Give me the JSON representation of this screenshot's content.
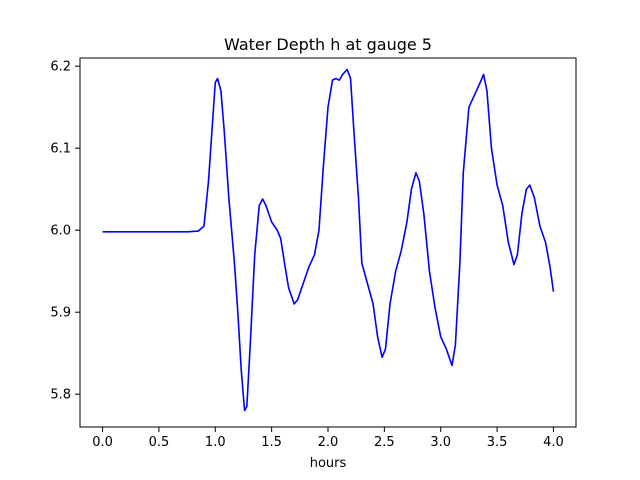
{
  "chart_data": {
    "type": "line",
    "title": "Water Depth h at gauge 5",
    "xlabel": "hours",
    "ylabel": "",
    "xlim": [
      -0.2,
      4.2
    ],
    "ylim": [
      5.76,
      6.21
    ],
    "xticks": [
      0.0,
      0.5,
      1.0,
      1.5,
      2.0,
      2.5,
      3.0,
      3.5,
      4.0
    ],
    "xtick_labels": [
      "0.0",
      "0.5",
      "1.0",
      "1.5",
      "2.0",
      "2.5",
      "3.0",
      "3.5",
      "4.0"
    ],
    "yticks": [
      5.8,
      5.9,
      6.0,
      6.1,
      6.2
    ],
    "ytick_labels": [
      "5.8",
      "5.9",
      "6.0",
      "6.1",
      "6.2"
    ],
    "grid": false,
    "series": [
      {
        "color": "#0000ff",
        "points": [
          [
            0.0,
            5.998
          ],
          [
            0.3,
            5.998
          ],
          [
            0.5,
            5.998
          ],
          [
            0.75,
            5.998
          ],
          [
            0.85,
            5.999
          ],
          [
            0.9,
            6.005
          ],
          [
            0.94,
            6.06
          ],
          [
            0.97,
            6.12
          ],
          [
            1.0,
            6.18
          ],
          [
            1.02,
            6.185
          ],
          [
            1.05,
            6.17
          ],
          [
            1.08,
            6.12
          ],
          [
            1.12,
            6.04
          ],
          [
            1.17,
            5.96
          ],
          [
            1.2,
            5.9
          ],
          [
            1.23,
            5.83
          ],
          [
            1.26,
            5.78
          ],
          [
            1.28,
            5.785
          ],
          [
            1.31,
            5.86
          ],
          [
            1.35,
            5.97
          ],
          [
            1.39,
            6.03
          ],
          [
            1.42,
            6.038
          ],
          [
            1.45,
            6.03
          ],
          [
            1.5,
            6.01
          ],
          [
            1.55,
            6.0
          ],
          [
            1.58,
            5.99
          ],
          [
            1.62,
            5.955
          ],
          [
            1.65,
            5.93
          ],
          [
            1.7,
            5.91
          ],
          [
            1.73,
            5.915
          ],
          [
            1.78,
            5.935
          ],
          [
            1.83,
            5.955
          ],
          [
            1.88,
            5.97
          ],
          [
            1.92,
            6.0
          ],
          [
            1.96,
            6.08
          ],
          [
            2.0,
            6.15
          ],
          [
            2.04,
            6.183
          ],
          [
            2.07,
            6.185
          ],
          [
            2.1,
            6.183
          ],
          [
            2.13,
            6.19
          ],
          [
            2.17,
            6.196
          ],
          [
            2.2,
            6.185
          ],
          [
            2.23,
            6.12
          ],
          [
            2.27,
            6.04
          ],
          [
            2.3,
            5.96
          ],
          [
            2.35,
            5.935
          ],
          [
            2.4,
            5.91
          ],
          [
            2.44,
            5.87
          ],
          [
            2.48,
            5.845
          ],
          [
            2.51,
            5.855
          ],
          [
            2.55,
            5.91
          ],
          [
            2.6,
            5.95
          ],
          [
            2.65,
            5.975
          ],
          [
            2.7,
            6.01
          ],
          [
            2.74,
            6.05
          ],
          [
            2.78,
            6.07
          ],
          [
            2.81,
            6.06
          ],
          [
            2.85,
            6.02
          ],
          [
            2.9,
            5.95
          ],
          [
            2.95,
            5.905
          ],
          [
            3.0,
            5.87
          ],
          [
            3.05,
            5.855
          ],
          [
            3.1,
            5.835
          ],
          [
            3.13,
            5.86
          ],
          [
            3.17,
            5.96
          ],
          [
            3.2,
            6.07
          ],
          [
            3.25,
            6.15
          ],
          [
            3.3,
            6.165
          ],
          [
            3.35,
            6.18
          ],
          [
            3.38,
            6.19
          ],
          [
            3.41,
            6.17
          ],
          [
            3.45,
            6.1
          ],
          [
            3.5,
            6.055
          ],
          [
            3.55,
            6.03
          ],
          [
            3.6,
            5.985
          ],
          [
            3.65,
            5.958
          ],
          [
            3.68,
            5.97
          ],
          [
            3.72,
            6.02
          ],
          [
            3.76,
            6.05
          ],
          [
            3.79,
            6.055
          ],
          [
            3.83,
            6.04
          ],
          [
            3.88,
            6.005
          ],
          [
            3.93,
            5.985
          ],
          [
            3.97,
            5.955
          ],
          [
            4.0,
            5.925
          ]
        ]
      }
    ]
  }
}
